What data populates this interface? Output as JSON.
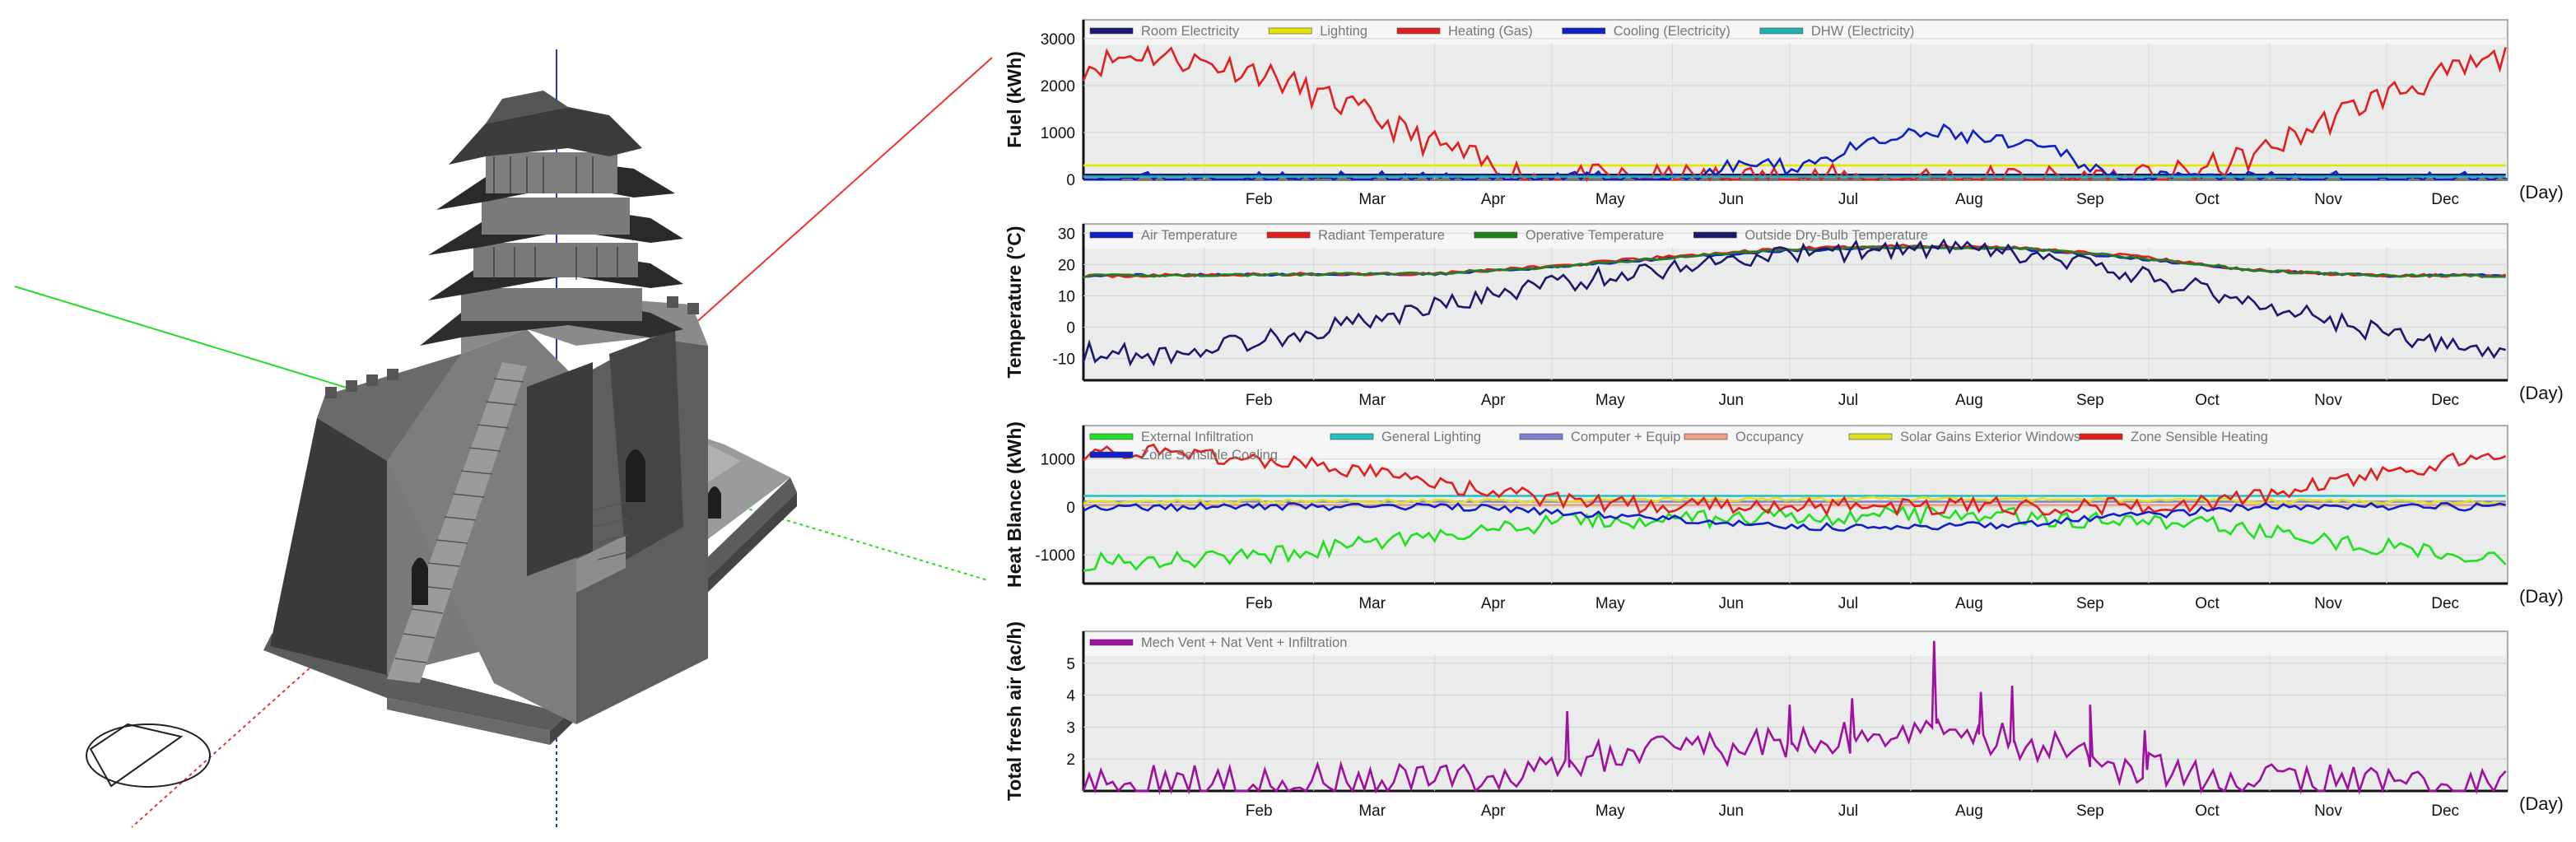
{
  "colors": {
    "fuel_room": "#1a1a6e",
    "fuel_light": "#e6e600",
    "fuel_heat": "#e02020",
    "fuel_cool": "#1020c8",
    "fuel_dhw": "#20b0b0",
    "t_air": "#1020c8",
    "t_rad": "#e02020",
    "t_op": "#208020",
    "t_out": "#1a1a6e",
    "hb_inf": "#20e020",
    "hb_light": "#20c0c0",
    "hb_equip": "#8080d0",
    "hb_occ": "#e8a080",
    "hb_solar": "#e0e020",
    "hb_heat": "#e02020",
    "hb_cool": "#1020c8",
    "air": "#a010a0",
    "plot_bg": "#eaeceb"
  },
  "chart_data": [
    {
      "type": "line",
      "ylabel": "Fuel  (kWh)",
      "x_unit": "(Day)",
      "months": [
        "Feb",
        "Mar",
        "Apr",
        "May",
        "Jun",
        "Jul",
        "Aug",
        "Sep",
        "Oct",
        "Nov",
        "Dec"
      ],
      "yticks": [
        "3000",
        "2000",
        "1000",
        "0"
      ],
      "ylim": [
        0,
        3400
      ],
      "legend": [
        {
          "name": "Room Electricity",
          "color": "#1a1a6e"
        },
        {
          "name": "Lighting",
          "color": "#e6e600"
        },
        {
          "name": "Heating (Gas)",
          "color": "#e02020"
        },
        {
          "name": "Cooling (Electricity)",
          "color": "#1020c8"
        },
        {
          "name": "DHW (Electricity)",
          "color": "#20b0b0"
        }
      ],
      "series": [
        {
          "name": "Room Electricity",
          "color": "#1a1a6e",
          "keypoints": [
            [
              0,
              100
            ],
            [
              365,
              100
            ]
          ]
        },
        {
          "name": "Lighting",
          "color": "#e6e600",
          "keypoints": [
            [
              0,
              300
            ],
            [
              365,
              300
            ]
          ]
        },
        {
          "name": "Heating (Gas)",
          "color": "#e02020",
          "amp": 300,
          "seed": 11,
          "keypoints": [
            [
              0,
              2400
            ],
            [
              15,
              2700
            ],
            [
              30,
              2500
            ],
            [
              45,
              2300
            ],
            [
              60,
              1800
            ],
            [
              75,
              1300
            ],
            [
              85,
              900
            ],
            [
              95,
              600
            ],
            [
              105,
              250
            ],
            [
              115,
              80
            ],
            [
              130,
              20
            ],
            [
              275,
              20
            ],
            [
              285,
              150
            ],
            [
              300,
              500
            ],
            [
              315,
              1100
            ],
            [
              330,
              1700
            ],
            [
              345,
              2100
            ],
            [
              360,
              2500
            ],
            [
              365,
              2600
            ]
          ]
        },
        {
          "name": "Cooling (Electricity)",
          "color": "#1020c8",
          "amp": 170,
          "seed": 23,
          "keypoints": [
            [
              0,
              0
            ],
            [
              150,
              0
            ],
            [
              160,
              120
            ],
            [
              170,
              350
            ],
            [
              180,
              250
            ],
            [
              190,
              450
            ],
            [
              200,
              700
            ],
            [
              210,
              900
            ],
            [
              220,
              1000
            ],
            [
              228,
              900
            ],
            [
              240,
              700
            ],
            [
              250,
              600
            ],
            [
              258,
              300
            ],
            [
              265,
              0
            ],
            [
              365,
              0
            ]
          ]
        },
        {
          "name": "DHW (Electricity)",
          "color": "#20b0b0",
          "keypoints": [
            [
              0,
              60
            ],
            [
              365,
              60
            ]
          ]
        }
      ]
    },
    {
      "type": "line",
      "ylabel": "Temperature  (°C)",
      "x_unit": "(Day)",
      "months": [
        "Feb",
        "Mar",
        "Apr",
        "May",
        "Jun",
        "Jul",
        "Aug",
        "Sep",
        "Oct",
        "Nov",
        "Dec"
      ],
      "yticks": [
        "30",
        "20",
        "10",
        "0",
        "-10"
      ],
      "ylim": [
        -17,
        33
      ],
      "legend": [
        {
          "name": "Air Temperature",
          "color": "#1020c8"
        },
        {
          "name": "Radiant Temperature",
          "color": "#e02020"
        },
        {
          "name": "Operative Temperature",
          "color": "#208020"
        },
        {
          "name": "Outside Dry-Bulb Temperature",
          "color": "#1a1a6e"
        }
      ],
      "series": [
        {
          "name": "Air Temperature",
          "color": "#1020c8",
          "amp": 0.4,
          "seed": 31,
          "keypoints": [
            [
              0,
              16.5
            ],
            [
              90,
              17
            ],
            [
              120,
              19
            ],
            [
              150,
              22
            ],
            [
              180,
              24.5
            ],
            [
              210,
              25.5
            ],
            [
              240,
              25
            ],
            [
              270,
              22
            ],
            [
              300,
              18
            ],
            [
              330,
              16.5
            ],
            [
              365,
              16.5
            ]
          ]
        },
        {
          "name": "Radiant Temperature",
          "color": "#e02020",
          "amp": 0.5,
          "seed": 37,
          "keypoints": [
            [
              0,
              16.3
            ],
            [
              90,
              17.2
            ],
            [
              120,
              19.5
            ],
            [
              150,
              22.5
            ],
            [
              180,
              25
            ],
            [
              210,
              26
            ],
            [
              240,
              25.5
            ],
            [
              270,
              22.5
            ],
            [
              300,
              18.2
            ],
            [
              330,
              16.6
            ],
            [
              365,
              16.4
            ]
          ]
        },
        {
          "name": "Operative Temperature",
          "color": "#208020",
          "amp": 0.4,
          "seed": 41,
          "keypoints": [
            [
              0,
              16.4
            ],
            [
              90,
              17.1
            ],
            [
              120,
              19.2
            ],
            [
              150,
              22.2
            ],
            [
              180,
              24.8
            ],
            [
              210,
              25.7
            ],
            [
              240,
              25.2
            ],
            [
              270,
              22.2
            ],
            [
              300,
              18.1
            ],
            [
              330,
              16.5
            ],
            [
              365,
              16.4
            ]
          ]
        },
        {
          "name": "Outside Dry-Bulb Temperature",
          "color": "#1a1a6e",
          "amp": 3.2,
          "seed": 53,
          "keypoints": [
            [
              0,
              -8
            ],
            [
              20,
              -9
            ],
            [
              40,
              -5
            ],
            [
              60,
              -1
            ],
            [
              80,
              4
            ],
            [
              100,
              9
            ],
            [
              120,
              14
            ],
            [
              140,
              17
            ],
            [
              160,
              21
            ],
            [
              180,
              23
            ],
            [
              200,
              24.5
            ],
            [
              220,
              25
            ],
            [
              240,
              23
            ],
            [
              260,
              19
            ],
            [
              280,
              14
            ],
            [
              300,
              8
            ],
            [
              320,
              2
            ],
            [
              340,
              -4
            ],
            [
              365,
              -9
            ]
          ]
        }
      ]
    },
    {
      "type": "line",
      "ylabel": "Heat Blance  (kWh)",
      "x_unit": "(Day)",
      "months": [
        "Feb",
        "Mar",
        "Apr",
        "May",
        "Jun",
        "Jul",
        "Aug",
        "Sep",
        "Oct",
        "Nov",
        "Dec"
      ],
      "yticks": [
        "1000",
        "0",
        "-1000"
      ],
      "ylim": [
        -1600,
        1700
      ],
      "legend": [
        {
          "name": "External Infiltration",
          "color": "#20e020"
        },
        {
          "name": "General Lighting",
          "color": "#20c0c0"
        },
        {
          "name": "Computer + Equip",
          "color": "#8080d0"
        },
        {
          "name": "Occupancy",
          "color": "#e8a080"
        },
        {
          "name": "Solar Gains Exterior Windows",
          "color": "#e0e020"
        },
        {
          "name": "Zone Sensible Heating",
          "color": "#e02020"
        },
        {
          "name": "Zone Sensible Cooling",
          "color": "#1020c8"
        }
      ],
      "series": [
        {
          "name": "External Infiltration",
          "color": "#20e020",
          "amp": 180,
          "seed": 61,
          "keypoints": [
            [
              0,
              -1150
            ],
            [
              30,
              -1100
            ],
            [
              60,
              -900
            ],
            [
              90,
              -600
            ],
            [
              120,
              -350
            ],
            [
              150,
              -250
            ],
            [
              180,
              -220
            ],
            [
              210,
              -180
            ],
            [
              240,
              -200
            ],
            [
              270,
              -300
            ],
            [
              290,
              -350
            ],
            [
              310,
              -600
            ],
            [
              340,
              -900
            ],
            [
              365,
              -1100
            ]
          ]
        },
        {
          "name": "General Lighting",
          "color": "#20c0c0",
          "keypoints": [
            [
              0,
              230
            ],
            [
              365,
              230
            ]
          ]
        },
        {
          "name": "Computer + Equip",
          "color": "#8080d0",
          "keypoints": [
            [
              0,
              110
            ],
            [
              365,
              110
            ]
          ]
        },
        {
          "name": "Occupancy",
          "color": "#e8a080",
          "keypoints": [
            [
              0,
              40
            ],
            [
              365,
              40
            ]
          ]
        },
        {
          "name": "Solar Gains Exterior Windows",
          "color": "#e0e020",
          "amp": 40,
          "seed": 67,
          "keypoints": [
            [
              0,
              100
            ],
            [
              120,
              140
            ],
            [
              200,
              170
            ],
            [
              280,
              140
            ],
            [
              365,
              100
            ]
          ]
        },
        {
          "name": "Zone Sensible Heating",
          "color": "#e02020",
          "amp": 180,
          "seed": 71,
          "keypoints": [
            [
              0,
              1150
            ],
            [
              30,
              1100
            ],
            [
              60,
              850
            ],
            [
              90,
              500
            ],
            [
              110,
              250
            ],
            [
              130,
              80
            ],
            [
              150,
              20
            ],
            [
              280,
              20
            ],
            [
              300,
              200
            ],
            [
              320,
              500
            ],
            [
              345,
              850
            ],
            [
              365,
              1150
            ]
          ]
        },
        {
          "name": "Zone Sensible Cooling",
          "color": "#1020c8",
          "amp": 80,
          "seed": 79,
          "keypoints": [
            [
              0,
              0
            ],
            [
              100,
              0
            ],
            [
              120,
              -120
            ],
            [
              150,
              -250
            ],
            [
              180,
              -400
            ],
            [
              210,
              -450
            ],
            [
              240,
              -350
            ],
            [
              260,
              -250
            ],
            [
              280,
              -120
            ],
            [
              300,
              0
            ],
            [
              365,
              0
            ]
          ]
        }
      ]
    },
    {
      "type": "line",
      "ylabel": "Total fresh air  (ac/h)",
      "x_unit": "(Day)",
      "months": [
        "Feb",
        "Mar",
        "Apr",
        "May",
        "Jun",
        "Jul",
        "Aug",
        "Sep",
        "Oct",
        "Nov",
        "Dec"
      ],
      "yticks": [
        "5",
        "4",
        "3",
        "2"
      ],
      "ylim": [
        1,
        6
      ],
      "legend": [
        {
          "name": "Mech Vent + Nat Vent + Infiltration",
          "color": "#a010a0"
        }
      ],
      "series": [
        {
          "name": "Mech Vent + Nat Vent + Infiltration",
          "color": "#a010a0",
          "amp": 0.55,
          "seed": 89,
          "keypoints": [
            [
              0,
              1.3
            ],
            [
              100,
              1.3
            ],
            [
              110,
              1.5
            ],
            [
              125,
              2
            ],
            [
              150,
              2.2
            ],
            [
              170,
              2.4
            ],
            [
              190,
              2.6
            ],
            [
              205,
              2.8
            ],
            [
              215,
              3.2
            ],
            [
              225,
              2.9
            ],
            [
              240,
              2.5
            ],
            [
              255,
              2.2
            ],
            [
              265,
              1.8
            ],
            [
              275,
              1.6
            ],
            [
              290,
              1.35
            ],
            [
              365,
              1.3
            ]
          ],
          "spikes": [
            [
              218,
              5.7
            ],
            [
              238,
              4.3
            ],
            [
              230,
              4.1
            ],
            [
              197,
              3.9
            ],
            [
              181,
              3.7
            ],
            [
              124,
              3.5
            ],
            [
              258,
              3.7
            ],
            [
              272,
              2.9
            ]
          ]
        }
      ]
    }
  ]
}
